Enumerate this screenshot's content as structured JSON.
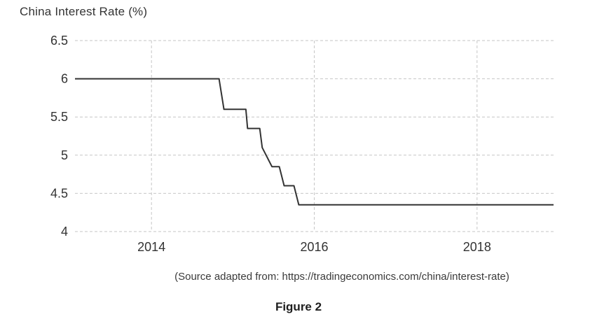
{
  "chart_title": "China Interest Rate (%)",
  "source_note": "(Source adapted from: https://tradingeconomics.com/china/interest-rate)",
  "figure_caption": "Figure 2",
  "colors": {
    "line": "#333333",
    "grid": "#c6c6c6",
    "tick_text": "#333333",
    "background": "#ffffff"
  },
  "chart_data": {
    "type": "line",
    "line_style": "step-interpolated",
    "title": "China Interest Rate (%)",
    "xlabel": "",
    "ylabel": "",
    "legend": "none",
    "grid": "dashed-both-axes",
    "xlim": [
      2013.06,
      2018.94
    ],
    "ylim": [
      4,
      6.5
    ],
    "x_ticks": [
      2014,
      2016,
      2018
    ],
    "y_ticks": [
      4,
      4.5,
      5,
      5.5,
      6,
      6.5
    ],
    "series": [
      {
        "name": "China Interest Rate (%)",
        "points": [
          [
            2013.06,
            6.0
          ],
          [
            2014.83,
            6.0
          ],
          [
            2014.89,
            5.6
          ],
          [
            2015.16,
            5.6
          ],
          [
            2015.18,
            5.35
          ],
          [
            2015.33,
            5.35
          ],
          [
            2015.36,
            5.1
          ],
          [
            2015.48,
            4.85
          ],
          [
            2015.57,
            4.85
          ],
          [
            2015.63,
            4.6
          ],
          [
            2015.75,
            4.6
          ],
          [
            2015.81,
            4.35
          ],
          [
            2018.94,
            4.35
          ]
        ]
      }
    ]
  }
}
